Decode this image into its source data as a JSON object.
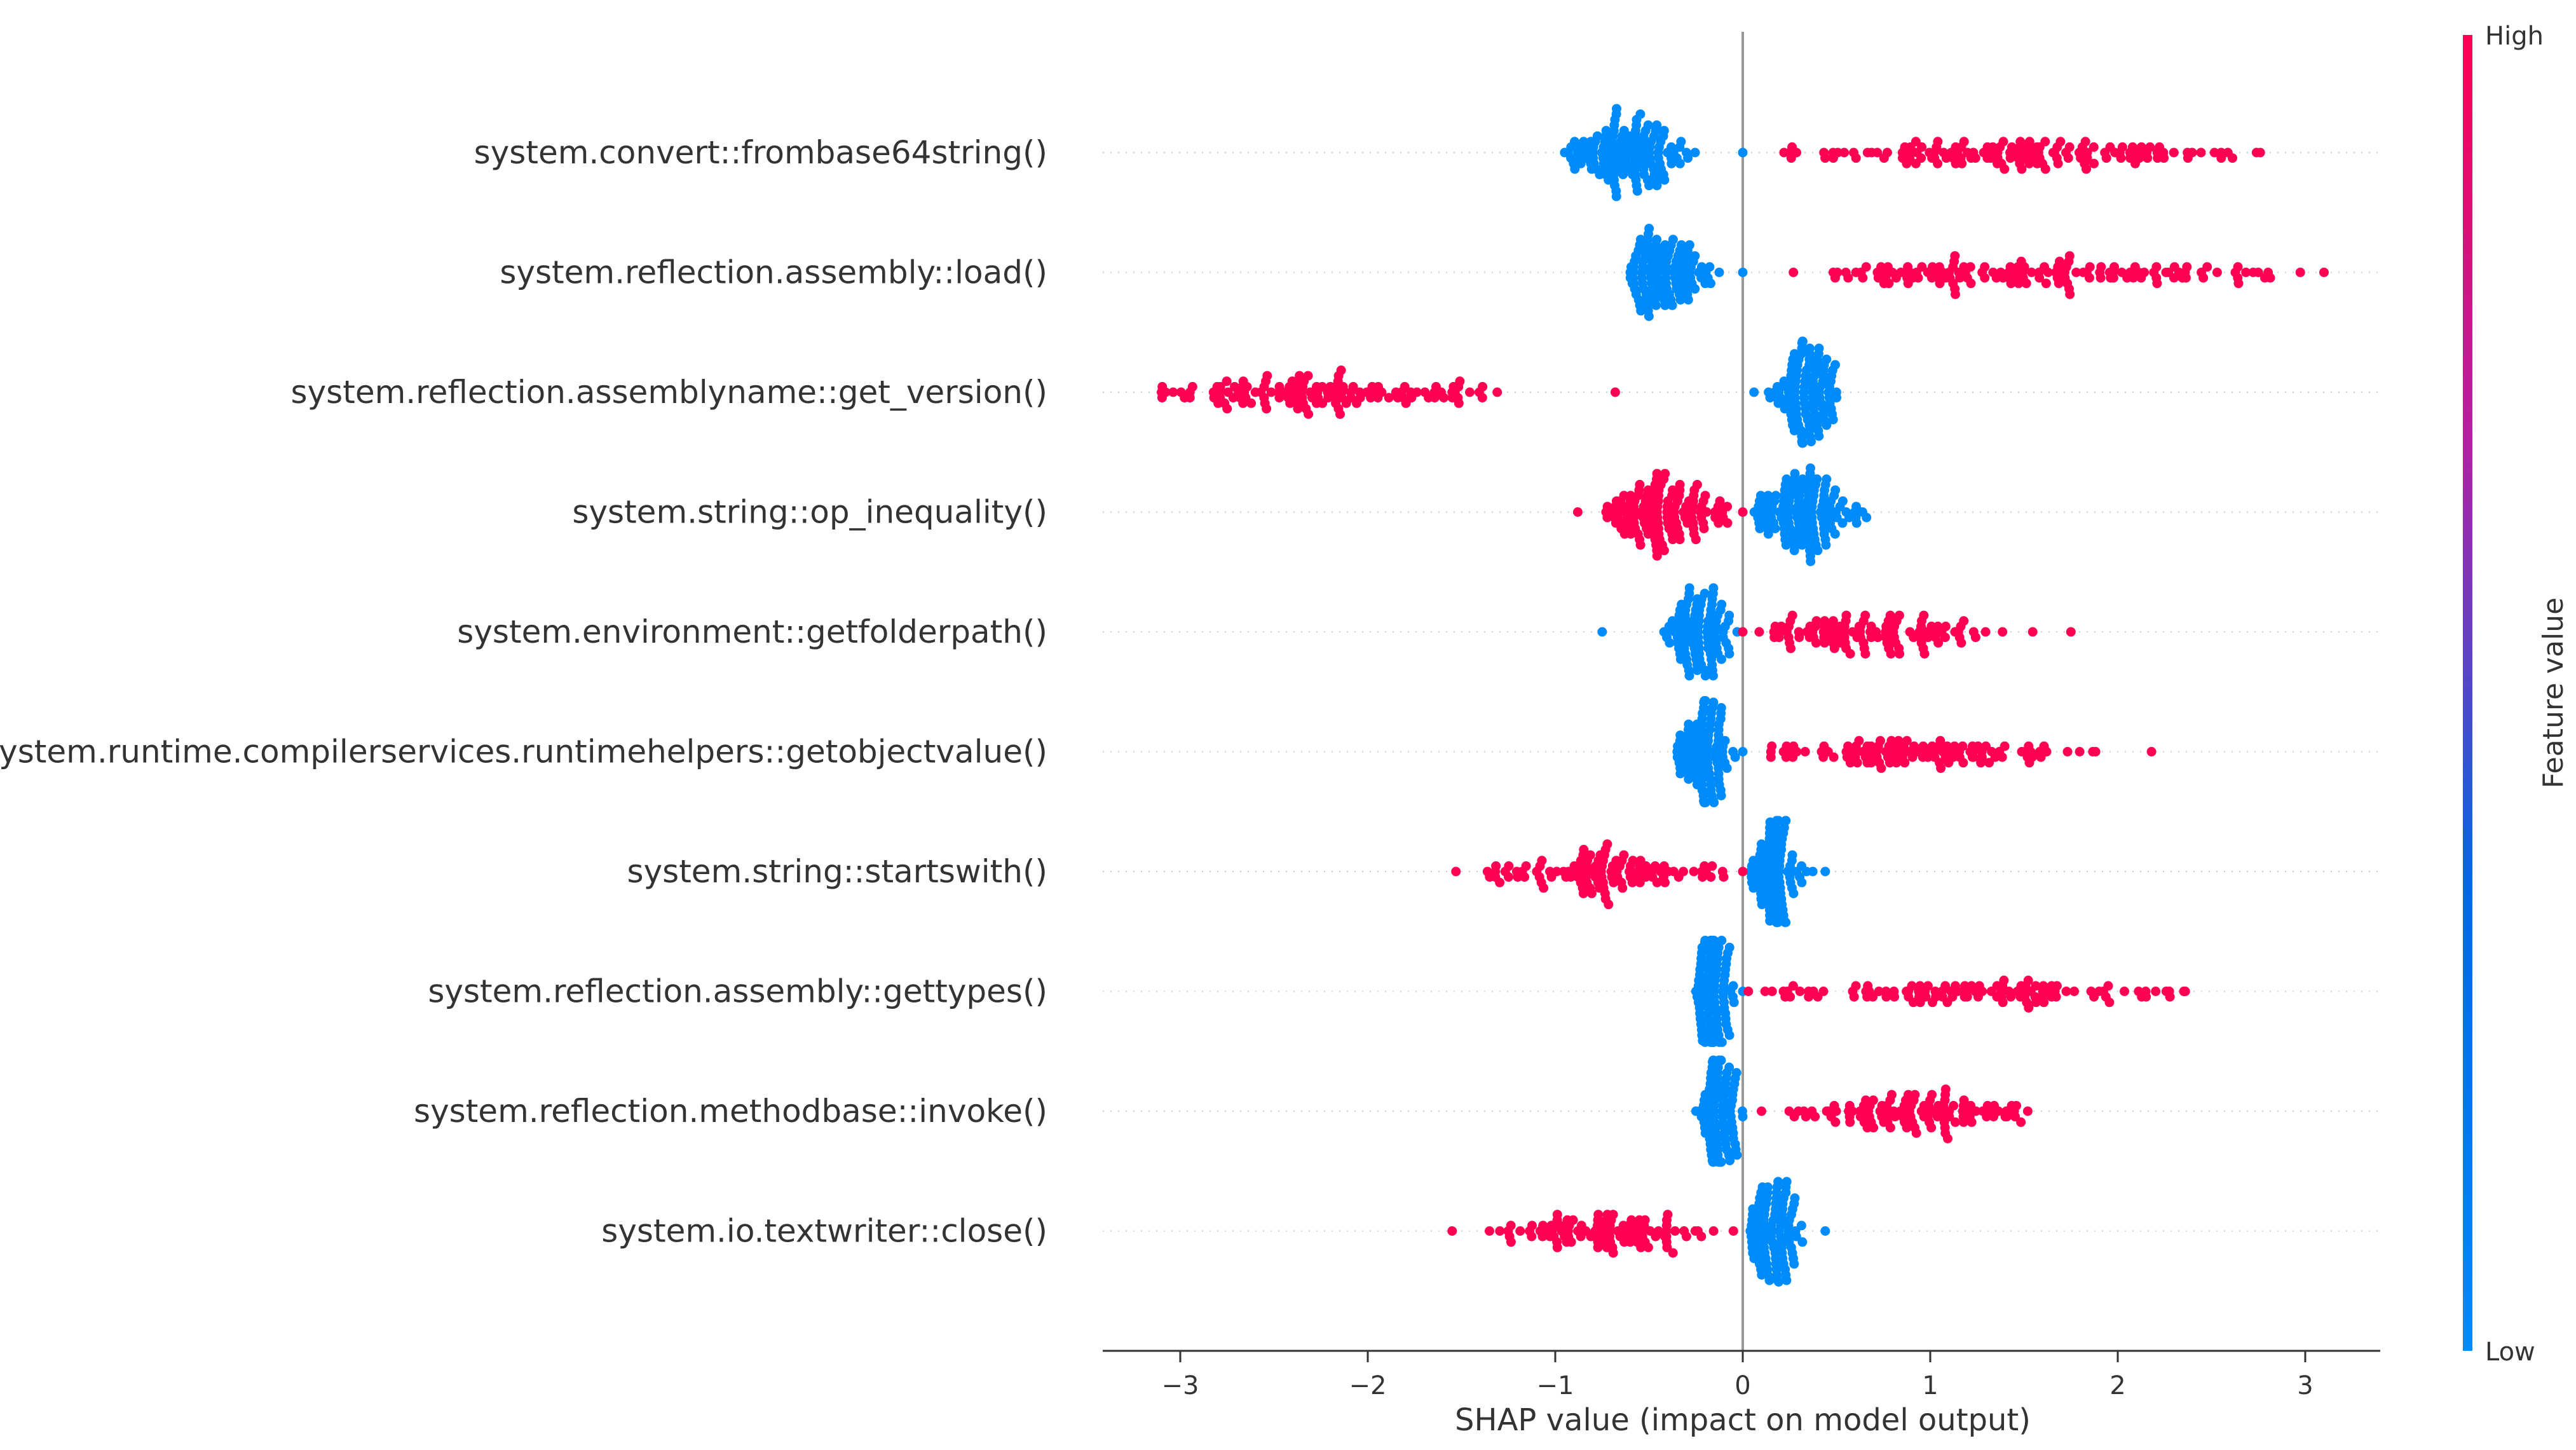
{
  "chart_data": {
    "type": "scatter",
    "subtype": "shap-beeswarm",
    "title": "",
    "xlabel": "SHAP value (impact on model output)",
    "ylabel": "",
    "xlim": [
      -3.4,
      3.4
    ],
    "xticks": [
      -3,
      -2,
      -1,
      0,
      1,
      2,
      3
    ],
    "xtick_labels": [
      "−3",
      "−2",
      "−1",
      "0",
      "1",
      "2",
      "3"
    ],
    "grid": false,
    "colorbar": {
      "label": "Feature value",
      "high_label": "High",
      "low_label": "Low",
      "high_color": "#ff0052",
      "low_color": "#008bfb"
    },
    "features": [
      {
        "name": "system.convert::frombase64string()",
        "low": {
          "min": -0.95,
          "max": 0.0,
          "peak": -0.62,
          "spread": 0.16,
          "count": 130
        },
        "high": {
          "min": 0.22,
          "max": 2.76,
          "peak": 1.45,
          "spread": 0.55,
          "count": 140
        }
      },
      {
        "name": "system.reflection.assembly::load()",
        "low": {
          "min": -0.6,
          "max": 0.0,
          "peak": -0.42,
          "spread": 0.12,
          "count": 110
        },
        "high": {
          "min": 0.27,
          "max": 3.1,
          "peak": 1.6,
          "spread": 0.7,
          "count": 140
        }
      },
      {
        "name": "system.reflection.assemblyname::get_version()",
        "high": {
          "min": -3.1,
          "max": -0.68,
          "peak": -2.3,
          "spread": 0.5,
          "count": 130
        },
        "low": {
          "min": 0.06,
          "max": 0.5,
          "peak": 0.32,
          "spread": 0.09,
          "count": 110
        }
      },
      {
        "name": "system.string::op_inequality()",
        "high": {
          "min": -0.88,
          "max": 0.0,
          "peak": -0.42,
          "spread": 0.15,
          "count": 130
        },
        "low": {
          "min": 0.0,
          "max": 0.66,
          "peak": 0.32,
          "spread": 0.13,
          "count": 130
        }
      },
      {
        "name": "system.environment::getfolderpath()",
        "low": {
          "min": -0.75,
          "max": -0.03,
          "peak": -0.22,
          "spread": 0.1,
          "count": 100
        },
        "high": {
          "min": 0.0,
          "max": 1.75,
          "peak": 0.65,
          "spread": 0.35,
          "count": 110
        }
      },
      {
        "name": "system.runtime.compilerservices.runtimehelpers::getobjectvalue()",
        "low": {
          "min": -0.35,
          "max": 0.0,
          "peak": -0.2,
          "spread": 0.07,
          "count": 100
        },
        "high": {
          "min": 0.15,
          "max": 2.18,
          "peak": 0.95,
          "spread": 0.45,
          "count": 110
        }
      },
      {
        "name": "system.string::startswith()",
        "high": {
          "min": -1.53,
          "max": 0.0,
          "peak": -0.7,
          "spread": 0.3,
          "count": 110
        },
        "low": {
          "min": 0.04,
          "max": 0.44,
          "peak": 0.17,
          "spread": 0.07,
          "count": 100
        }
      },
      {
        "name": "system.reflection.assembly::gettypes()",
        "low": {
          "min": -0.25,
          "max": 0.0,
          "peak": -0.15,
          "spread": 0.05,
          "count": 100
        },
        "high": {
          "min": 0.03,
          "max": 2.36,
          "peak": 1.2,
          "spread": 0.6,
          "count": 110
        }
      },
      {
        "name": "system.reflection.methodbase::invoke()",
        "low": {
          "min": -0.25,
          "max": 0.0,
          "peak": -0.13,
          "spread": 0.05,
          "count": 100
        },
        "high": {
          "min": 0.1,
          "max": 1.52,
          "peak": 0.9,
          "spread": 0.3,
          "count": 110
        }
      },
      {
        "name": "system.io.textwriter::close()",
        "high": {
          "min": -1.55,
          "max": -0.05,
          "peak": -0.75,
          "spread": 0.3,
          "count": 100
        },
        "low": {
          "min": 0.04,
          "max": 0.44,
          "peak": 0.17,
          "spread": 0.07,
          "count": 100
        }
      }
    ]
  }
}
